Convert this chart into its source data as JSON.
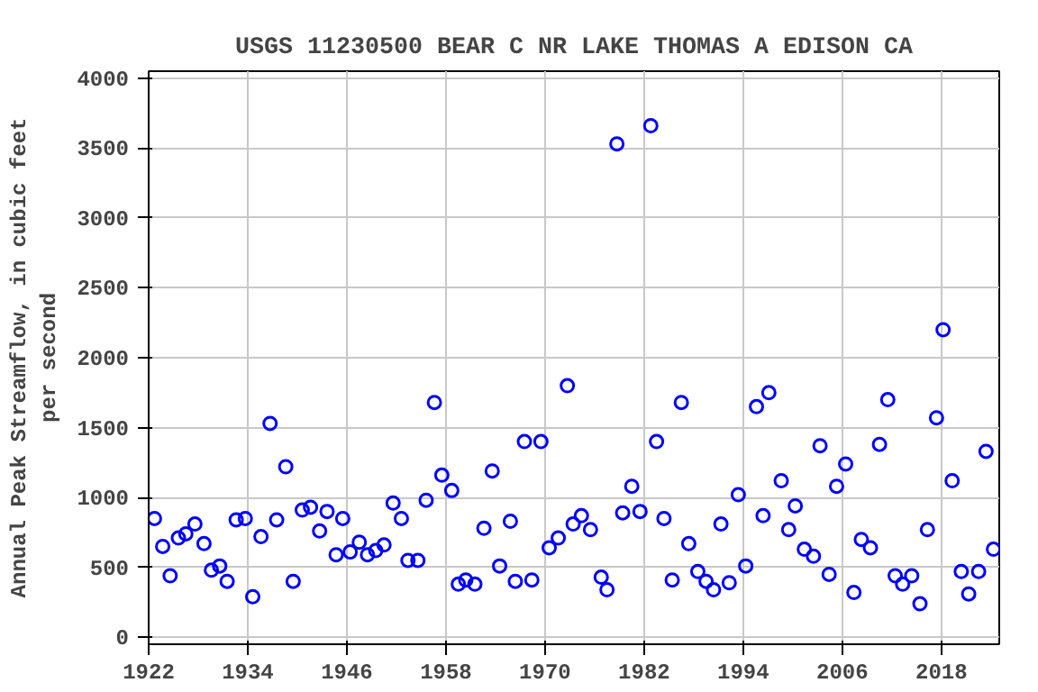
{
  "chart_data": {
    "type": "scatter",
    "title": "USGS 11230500 BEAR C NR LAKE THOMAS A EDISON CA",
    "ylabel": "Annual Peak Streamflow, in cubic feet per second",
    "x": [
      1922.7,
      1923.7,
      1924.6,
      1925.6,
      1926.5,
      1927.6,
      1928.7,
      1929.6,
      1930.6,
      1931.5,
      1932.6,
      1933.7,
      1934.6,
      1935.6,
      1936.7,
      1937.5,
      1938.6,
      1939.5,
      1940.6,
      1941.6,
      1942.7,
      1943.6,
      1944.7,
      1945.5,
      1946.4,
      1947.5,
      1948.5,
      1949.5,
      1950.5,
      1951.6,
      1952.6,
      1953.4,
      1954.6,
      1955.6,
      1956.6,
      1957.5,
      1958.7,
      1959.5,
      1960.4,
      1961.5,
      1962.6,
      1963.6,
      1964.5,
      1965.8,
      1966.4,
      1967.5,
      1968.4,
      1969.5,
      1970.5,
      1971.6,
      1972.7,
      1973.4,
      1974.4,
      1975.5,
      1976.8,
      1977.5,
      1978.7,
      1979.4,
      1980.5,
      1981.5,
      1982.8,
      1983.5,
      1984.4,
      1985.4,
      1986.5,
      1987.4,
      1988.5,
      1989.5,
      1990.4,
      1991.3,
      1992.3,
      1993.4,
      1994.3,
      1995.6,
      1996.4,
      1997.1,
      1998.6,
      1999.5,
      2000.3,
      2001.4,
      2002.5,
      2003.3,
      2004.4,
      2005.3,
      2006.4,
      2007.4,
      2008.3,
      2009.4,
      2010.5,
      2011.5,
      2012.4,
      2013.3,
      2014.4,
      2015.4,
      2016.3,
      2017.4,
      2018.2,
      2019.3,
      2020.4,
      2021.3,
      2022.5,
      2023.4,
      2024.3
    ],
    "series": [
      {
        "color": "#0000ff",
        "values": [
          850,
          650,
          440,
          710,
          740,
          810,
          670,
          480,
          510,
          400,
          840,
          850,
          290,
          720,
          1530,
          840,
          1220,
          400,
          910,
          930,
          760,
          900,
          590,
          850,
          610,
          680,
          590,
          620,
          660,
          960,
          850,
          550,
          550,
          980,
          1680,
          1160,
          1050,
          380,
          410,
          380,
          780,
          1190,
          510,
          830,
          400,
          1400,
          410,
          1400,
          640,
          710,
          1800,
          810,
          870,
          770,
          430,
          340,
          3530,
          890,
          1080,
          900,
          3660,
          1400,
          850,
          410,
          1680,
          670,
          470,
          400,
          340,
          810,
          390,
          1020,
          510,
          1650,
          870,
          1750,
          1120,
          770,
          940,
          630,
          580,
          1370,
          450,
          1080,
          1240,
          320,
          700,
          640,
          1380,
          1700,
          440,
          380,
          440,
          240,
          770,
          1570,
          2200,
          1120,
          470,
          310,
          470,
          1330,
          630
        ]
      }
    ],
    "xlim": [
      1922,
      2025
    ],
    "ylim": [
      -50,
      4050
    ],
    "xticks": [
      1922,
      1934,
      1946,
      1958,
      1970,
      1982,
      1994,
      2006,
      2018
    ],
    "yticks": [
      0,
      500,
      1000,
      1500,
      2000,
      2500,
      3000,
      3500,
      4000
    ],
    "grid": true,
    "marker": "circle"
  }
}
